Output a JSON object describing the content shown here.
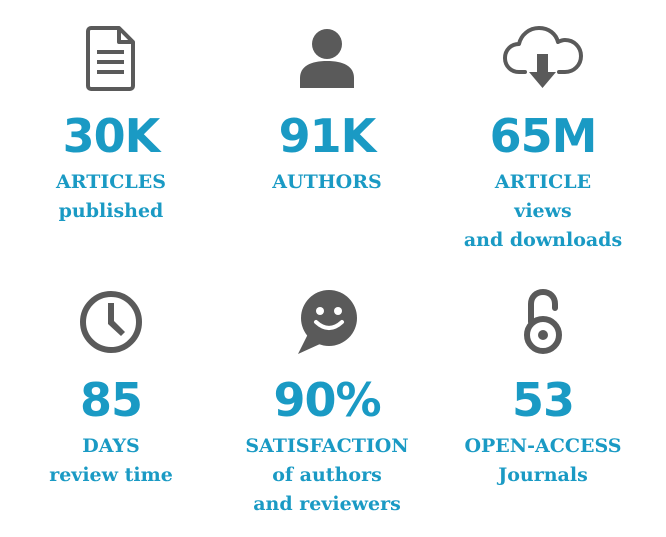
{
  "stats": [
    {
      "value": "30K",
      "lines": [
        "ARTICLES",
        "published"
      ],
      "icon": "document-icon"
    },
    {
      "value": "91K",
      "lines": [
        "AUTHORS"
      ],
      "icon": "user-icon"
    },
    {
      "value": "65M",
      "lines": [
        "ARTICLE",
        "views",
        "and downloads"
      ],
      "icon": "cloud-download-icon"
    },
    {
      "value": "85",
      "lines": [
        "DAYS",
        "review time"
      ],
      "icon": "clock-icon"
    },
    {
      "value": "90%",
      "lines": [
        "SATISFACTION",
        "of authors",
        "and reviewers"
      ],
      "icon": "smiley-chat-icon"
    },
    {
      "value": "53",
      "lines": [
        "OPEN-ACCESS",
        "Journals"
      ],
      "icon": "open-lock-icon"
    }
  ],
  "colors": {
    "accent": "#1a9ac4",
    "icon": "#5a5a5a"
  }
}
